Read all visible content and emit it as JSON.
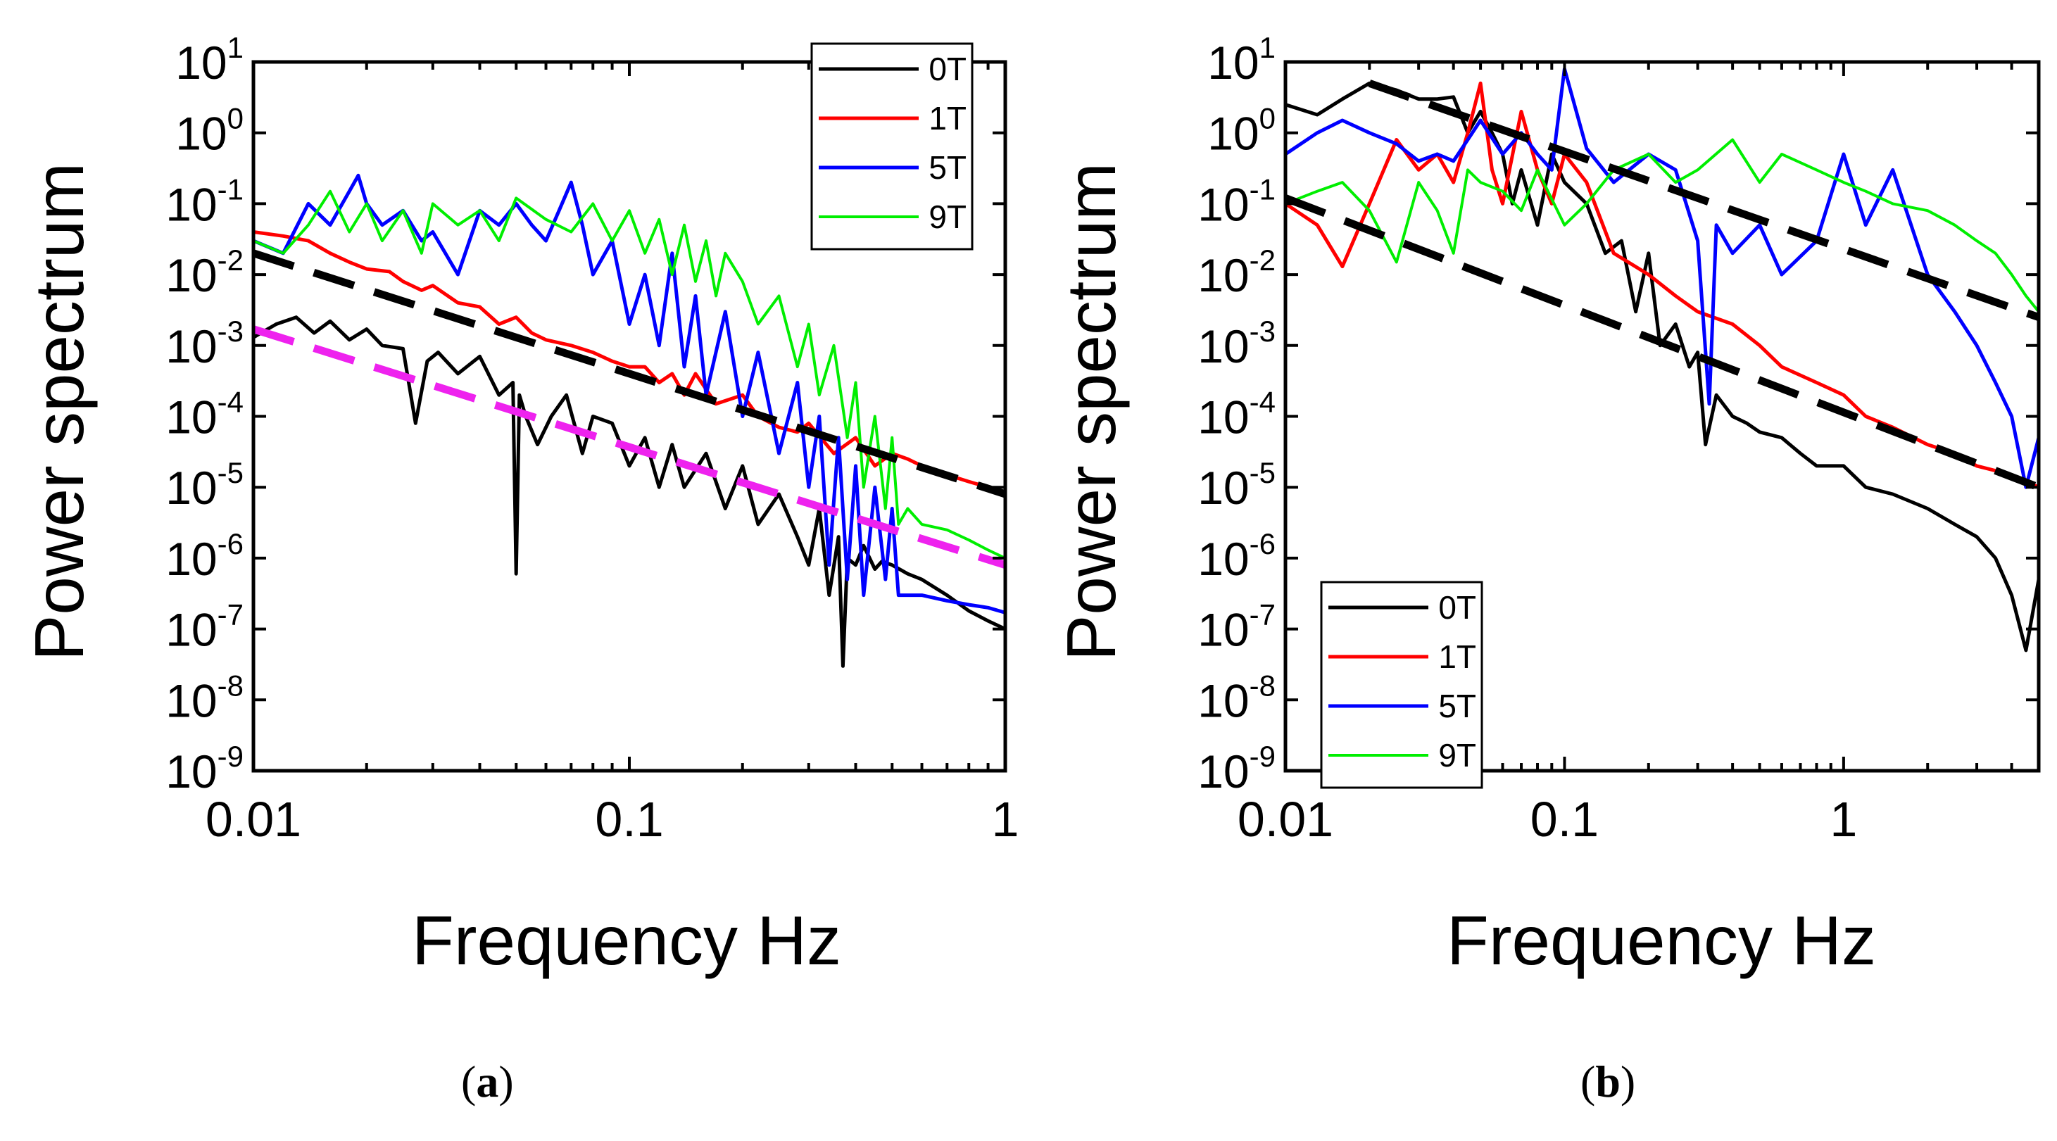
{
  "colors": {
    "0T": "#000000",
    "1T": "#ff0000",
    "5T": "#0000ff",
    "9T": "#00ee00",
    "fit_black": "#000000",
    "fit_magenta": "#ee22ee"
  },
  "chart_data": [
    {
      "panel": "a",
      "caption": "a",
      "type": "line",
      "xscale": "log",
      "yscale": "log",
      "xlabel": "Frequency Hz",
      "ylabel": "Power spectrum",
      "xlim": [
        0.01,
        1
      ],
      "ylim": [
        1e-09,
        10
      ],
      "xticks": [
        {
          "value": 0.01,
          "label": "0.01"
        },
        {
          "value": 0.1,
          "label": "0.1"
        },
        {
          "value": 1,
          "label": "1"
        }
      ],
      "yticks_base": "10",
      "yticks_exponents": [
        "1",
        "0",
        "-1",
        "-2",
        "-3",
        "-4",
        "-5",
        "-6",
        "-7",
        "-8",
        "-9"
      ],
      "legend_position": "top-right",
      "series": [
        {
          "name": "0T",
          "color_key": "0T",
          "width": 5,
          "x": [
            0.01,
            0.0115,
            0.013,
            0.0145,
            0.016,
            0.018,
            0.02,
            0.022,
            0.025,
            0.027,
            0.029,
            0.031,
            0.035,
            0.04,
            0.045,
            0.049,
            0.05,
            0.051,
            0.053,
            0.057,
            0.062,
            0.068,
            0.075,
            0.08,
            0.09,
            0.1,
            0.11,
            0.12,
            0.13,
            0.14,
            0.16,
            0.18,
            0.2,
            0.22,
            0.25,
            0.28,
            0.3,
            0.32,
            0.34,
            0.36,
            0.37,
            0.38,
            0.4,
            0.42,
            0.45,
            0.47,
            0.5,
            0.55,
            0.6,
            0.7,
            0.8,
            0.9,
            1.0
          ],
          "y": [
            0.0013,
            0.002,
            0.0025,
            0.0015,
            0.0022,
            0.0012,
            0.0017,
            0.001,
            0.0009,
            8e-05,
            0.0006,
            0.0008,
            0.0004,
            0.0007,
            0.0002,
            0.0003,
            6e-07,
            0.0002,
            0.0001,
            4e-05,
            0.0001,
            0.0002,
            3e-05,
            0.0001,
            8e-05,
            2e-05,
            5e-05,
            1e-05,
            4e-05,
            1e-05,
            3e-05,
            5e-06,
            2e-05,
            3e-06,
            8e-06,
            2e-06,
            8e-07,
            5e-06,
            3e-07,
            2e-06,
            3e-08,
            1e-06,
            8e-07,
            1.5e-06,
            7e-07,
            9e-07,
            8e-07,
            6e-07,
            5e-07,
            3e-07,
            1.8e-07,
            1.3e-07,
            1e-07
          ]
        },
        {
          "name": "1T",
          "color_key": "1T",
          "width": 5,
          "x": [
            0.01,
            0.012,
            0.014,
            0.016,
            0.018,
            0.02,
            0.023,
            0.025,
            0.028,
            0.03,
            0.035,
            0.04,
            0.045,
            0.05,
            0.055,
            0.06,
            0.07,
            0.08,
            0.09,
            0.1,
            0.11,
            0.12,
            0.13,
            0.14,
            0.15,
            0.17,
            0.2,
            0.22,
            0.25,
            0.28,
            0.3,
            0.35,
            0.4,
            0.45,
            0.5,
            0.55,
            0.6,
            0.7,
            0.8,
            0.9,
            1.0
          ],
          "y": [
            0.04,
            0.035,
            0.03,
            0.02,
            0.015,
            0.012,
            0.011,
            0.008,
            0.006,
            0.007,
            0.004,
            0.0035,
            0.002,
            0.0025,
            0.0015,
            0.0012,
            0.001,
            0.0008,
            0.0006,
            0.0005,
            0.0005,
            0.0003,
            0.0004,
            0.0002,
            0.0004,
            0.00015,
            0.0002,
            0.0001,
            7e-05,
            6e-05,
            8e-05,
            3e-05,
            5e-05,
            2e-05,
            3e-05,
            2.5e-05,
            2e-05,
            1.5e-05,
            1.2e-05,
            1e-05,
            8e-06
          ]
        },
        {
          "name": "5T",
          "color_key": "5T",
          "width": 5,
          "x": [
            0.01,
            0.012,
            0.014,
            0.016,
            0.018,
            0.019,
            0.02,
            0.022,
            0.025,
            0.028,
            0.03,
            0.035,
            0.04,
            0.045,
            0.05,
            0.055,
            0.06,
            0.065,
            0.07,
            0.075,
            0.08,
            0.09,
            0.1,
            0.11,
            0.12,
            0.13,
            0.14,
            0.15,
            0.16,
            0.18,
            0.2,
            0.22,
            0.25,
            0.28,
            0.3,
            0.32,
            0.34,
            0.36,
            0.38,
            0.4,
            0.42,
            0.45,
            0.48,
            0.5,
            0.52,
            0.55,
            0.6,
            0.7,
            0.8,
            0.9,
            1.0
          ],
          "y": [
            0.03,
            0.02,
            0.1,
            0.05,
            0.15,
            0.25,
            0.1,
            0.05,
            0.08,
            0.03,
            0.04,
            0.01,
            0.08,
            0.05,
            0.1,
            0.05,
            0.03,
            0.08,
            0.2,
            0.05,
            0.01,
            0.03,
            0.002,
            0.01,
            0.001,
            0.02,
            0.0005,
            0.005,
            0.0002,
            0.003,
            0.0001,
            0.0008,
            3e-05,
            0.0003,
            1e-05,
            0.0001,
            8e-07,
            5e-05,
            5e-07,
            2e-05,
            3e-07,
            1e-05,
            5e-07,
            5e-06,
            3e-07,
            3e-07,
            3e-07,
            2.5e-07,
            2.2e-07,
            2e-07,
            1.7e-07
          ]
        },
        {
          "name": "9T",
          "color_key": "9T",
          "width": 4,
          "x": [
            0.01,
            0.012,
            0.014,
            0.016,
            0.018,
            0.02,
            0.022,
            0.025,
            0.028,
            0.03,
            0.035,
            0.04,
            0.045,
            0.05,
            0.06,
            0.07,
            0.08,
            0.09,
            0.1,
            0.11,
            0.12,
            0.13,
            0.14,
            0.15,
            0.16,
            0.17,
            0.18,
            0.2,
            0.22,
            0.25,
            0.28,
            0.3,
            0.32,
            0.35,
            0.38,
            0.4,
            0.42,
            0.45,
            0.48,
            0.5,
            0.52,
            0.55,
            0.6,
            0.7,
            0.8,
            0.9,
            1.0
          ],
          "y": [
            0.03,
            0.02,
            0.05,
            0.15,
            0.04,
            0.1,
            0.03,
            0.08,
            0.02,
            0.1,
            0.05,
            0.08,
            0.03,
            0.12,
            0.06,
            0.04,
            0.1,
            0.03,
            0.08,
            0.02,
            0.06,
            0.01,
            0.05,
            0.008,
            0.03,
            0.005,
            0.02,
            0.008,
            0.002,
            0.005,
            0.0005,
            0.002,
            0.0002,
            0.001,
            5e-05,
            0.0003,
            1e-05,
            0.0001,
            5e-06,
            5e-05,
            3e-06,
            5e-06,
            3e-06,
            2.5e-06,
            1.8e-06,
            1.3e-06,
            1e-06
          ]
        }
      ],
      "fit_lines": [
        {
          "color_key": "fit_black",
          "x": [
            0.01,
            1.0
          ],
          "y": [
            0.02,
            8e-06
          ]
        },
        {
          "color_key": "fit_magenta",
          "x": [
            0.01,
            1.0
          ],
          "y": [
            0.0017,
            8e-07
          ]
        }
      ]
    },
    {
      "panel": "b",
      "caption": "b",
      "type": "line",
      "xscale": "log",
      "yscale": "log",
      "xlabel": "Frequency Hz",
      "ylabel": "Power spectrum",
      "xlim": [
        0.01,
        5
      ],
      "ylim": [
        1e-09,
        10
      ],
      "xticks": [
        {
          "value": 0.01,
          "label": "0.01"
        },
        {
          "value": 0.1,
          "label": "0.1"
        },
        {
          "value": 1,
          "label": "1"
        }
      ],
      "yticks_base": "10",
      "yticks_exponents": [
        "1",
        "0",
        "-1",
        "-2",
        "-3",
        "-4",
        "-5",
        "-6",
        "-7",
        "-8",
        "-9"
      ],
      "legend_position": "bottom-left",
      "series": [
        {
          "name": "0T",
          "color_key": "0T",
          "width": 5,
          "x": [
            0.01,
            0.013,
            0.016,
            0.02,
            0.025,
            0.03,
            0.035,
            0.04,
            0.045,
            0.05,
            0.055,
            0.06,
            0.065,
            0.07,
            0.08,
            0.09,
            0.1,
            0.12,
            0.14,
            0.16,
            0.18,
            0.2,
            0.22,
            0.25,
            0.28,
            0.3,
            0.32,
            0.35,
            0.4,
            0.45,
            0.5,
            0.6,
            0.7,
            0.8,
            1.0,
            1.2,
            1.5,
            2.0,
            2.5,
            3.0,
            3.5,
            4.0,
            4.5,
            5.0
          ],
          "y": [
            2.5,
            1.8,
            3,
            5,
            4,
            3,
            3,
            3.2,
            1,
            2,
            1,
            0.5,
            0.1,
            0.3,
            0.05,
            0.5,
            0.2,
            0.1,
            0.02,
            0.03,
            0.003,
            0.02,
            0.001,
            0.002,
            0.0005,
            0.0008,
            4e-05,
            0.0002,
            0.0001,
            8e-05,
            6e-05,
            5e-05,
            3e-05,
            2e-05,
            2e-05,
            1e-05,
            8e-06,
            5e-06,
            3e-06,
            2e-06,
            1e-06,
            3e-07,
            5e-08,
            5e-07
          ]
        },
        {
          "name": "1T",
          "color_key": "1T",
          "width": 5,
          "x": [
            0.01,
            0.013,
            0.016,
            0.02,
            0.025,
            0.03,
            0.035,
            0.04,
            0.045,
            0.05,
            0.055,
            0.06,
            0.07,
            0.08,
            0.09,
            0.1,
            0.12,
            0.15,
            0.2,
            0.25,
            0.3,
            0.4,
            0.5,
            0.6,
            0.8,
            1.0,
            1.2,
            1.5,
            2.0,
            2.5,
            3.0,
            4.0,
            5.0
          ],
          "y": [
            0.1,
            0.05,
            0.013,
            0.1,
            0.8,
            0.3,
            0.5,
            0.2,
            1,
            5,
            0.3,
            0.1,
            2,
            0.3,
            0.1,
            0.5,
            0.2,
            0.02,
            0.01,
            0.005,
            0.003,
            0.002,
            0.001,
            0.0005,
            0.0003,
            0.0002,
            0.0001,
            7e-05,
            4e-05,
            3e-05,
            2e-05,
            1.5e-05,
            1e-05
          ]
        },
        {
          "name": "5T",
          "color_key": "5T",
          "width": 5,
          "x": [
            0.01,
            0.013,
            0.016,
            0.02,
            0.025,
            0.03,
            0.035,
            0.04,
            0.045,
            0.05,
            0.06,
            0.07,
            0.08,
            0.09,
            0.1,
            0.12,
            0.15,
            0.2,
            0.25,
            0.3,
            0.33,
            0.35,
            0.4,
            0.5,
            0.6,
            0.8,
            1.0,
            1.2,
            1.5,
            2.0,
            2.5,
            3.0,
            3.5,
            4.0,
            4.5,
            5.0
          ],
          "y": [
            0.5,
            1,
            1.5,
            1,
            0.7,
            0.4,
            0.5,
            0.4,
            0.8,
            1.5,
            0.5,
            1,
            0.5,
            0.3,
            8,
            0.6,
            0.2,
            0.5,
            0.3,
            0.03,
            0.00015,
            0.05,
            0.02,
            0.05,
            0.01,
            0.03,
            0.5,
            0.05,
            0.3,
            0.01,
            0.003,
            0.001,
            0.0003,
            0.0001,
            1e-05,
            5e-05
          ]
        },
        {
          "name": "9T",
          "color_key": "9T",
          "width": 4,
          "x": [
            0.01,
            0.013,
            0.016,
            0.02,
            0.025,
            0.03,
            0.035,
            0.04,
            0.045,
            0.05,
            0.06,
            0.07,
            0.08,
            0.1,
            0.12,
            0.15,
            0.2,
            0.25,
            0.3,
            0.4,
            0.5,
            0.6,
            0.8,
            1.0,
            1.2,
            1.5,
            2.0,
            2.5,
            3.0,
            3.5,
            4.0,
            4.5,
            5.0
          ],
          "y": [
            0.1,
            0.15,
            0.2,
            0.08,
            0.015,
            0.2,
            0.08,
            0.02,
            0.3,
            0.2,
            0.15,
            0.08,
            0.3,
            0.05,
            0.1,
            0.3,
            0.5,
            0.2,
            0.3,
            0.8,
            0.2,
            0.5,
            0.3,
            0.2,
            0.15,
            0.1,
            0.08,
            0.05,
            0.03,
            0.02,
            0.01,
            0.005,
            0.003
          ]
        }
      ],
      "fit_lines": [
        {
          "color_key": "fit_black",
          "x": [
            0.02,
            5.0
          ],
          "y": [
            5,
            0.0025
          ]
        },
        {
          "color_key": "fit_black",
          "x": [
            0.01,
            5.0
          ],
          "y": [
            0.12,
            1e-05
          ]
        }
      ]
    }
  ]
}
